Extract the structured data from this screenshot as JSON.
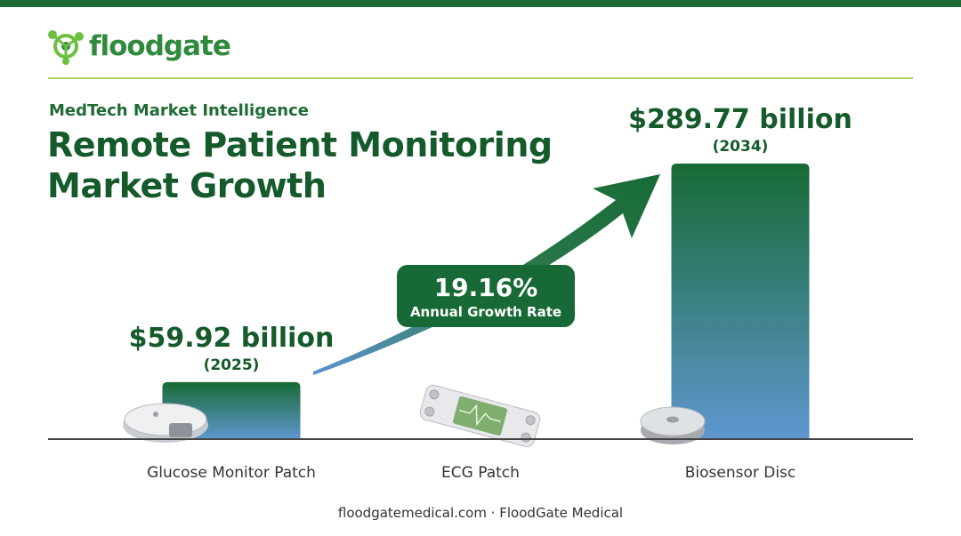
{
  "brand": {
    "name": "floodgate",
    "color": "#2f8a3c"
  },
  "header": {
    "eyebrow": "MedTech Market Intelligence",
    "title_line1": "Remote Patient Monitoring",
    "title_line2": "Market Growth"
  },
  "footer": {
    "text": "floodgatemedical.com · FloodGate Medical"
  },
  "chart_data": {
    "type": "bar",
    "categories": [
      "Glucose Monitor Patch",
      "ECG Patch",
      "Biosensor Disc"
    ],
    "values": [
      59.92,
      null,
      289.77
    ],
    "value_labels": [
      "$59.92 billion",
      "",
      "$289.77 billion"
    ],
    "year_labels": [
      "(2025)",
      "",
      "(2034)"
    ],
    "ylim": [
      0,
      289.77
    ],
    "growth_rate": {
      "value": "19.16%",
      "label": "Annual Growth Rate"
    },
    "colors": {
      "bar_top": "#176a35",
      "bar_bottom": "#5f97d0",
      "text": "#145a2b"
    },
    "icons": [
      "glucose-patch-icon",
      "ecg-patch-icon",
      "biosensor-disc-icon"
    ]
  }
}
